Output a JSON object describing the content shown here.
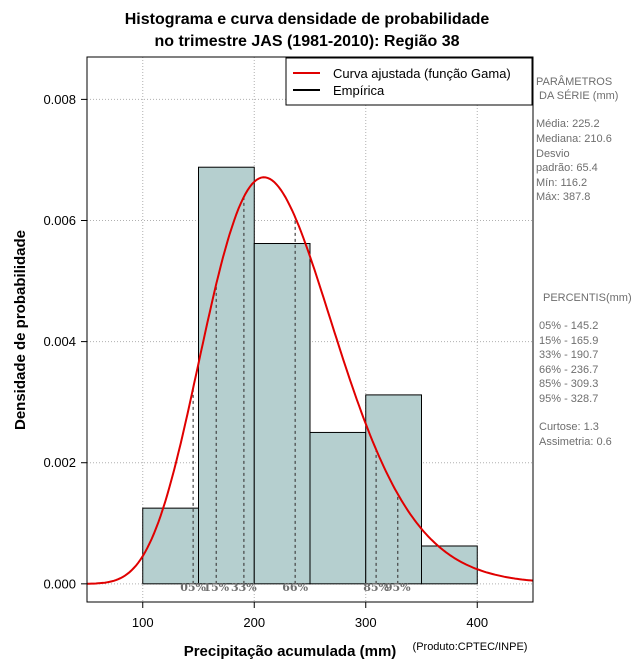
{
  "chart_data": {
    "type": "histogram",
    "title_lines": [
      "Histograma e curva densidade de probabilidade",
      "no trimestre JAS (1981-2010): Região 38"
    ],
    "xlabel": "Precipitação acumulada (mm)",
    "ylabel": "Densidade de probabilidade",
    "credit": "(Produto:CPTEC/INPE)",
    "xlim": [
      50,
      450
    ],
    "ylim": [
      -0.0003,
      0.0087
    ],
    "xticks": [
      100,
      200,
      300,
      400
    ],
    "yticks": [
      0.0,
      0.002,
      0.004,
      0.006,
      0.008
    ],
    "ytick_labels": [
      "0.000",
      "0.002",
      "0.004",
      "0.006",
      "0.008"
    ],
    "grid": true,
    "bars": [
      {
        "x0": 100,
        "x1": 150,
        "density": 0.00125
      },
      {
        "x0": 150,
        "x1": 200,
        "density": 0.00688
      },
      {
        "x0": 200,
        "x1": 250,
        "density": 0.00562
      },
      {
        "x0": 250,
        "x1": 300,
        "density": 0.0025
      },
      {
        "x0": 300,
        "x1": 350,
        "density": 0.00312
      },
      {
        "x0": 350,
        "x1": 400,
        "density": 0.000625
      }
    ],
    "bar_color": "#b5cfcf",
    "curve": {
      "type": "gamma",
      "shape": 13.5,
      "rate": 0.0599,
      "color": "#e00000",
      "label": "Curva ajustada (função Gama)"
    },
    "empirical_label": "Empírica",
    "percentile_lines": [
      {
        "label": "05%",
        "value": 145.2
      },
      {
        "label": "15%",
        "value": 165.9
      },
      {
        "label": "33%",
        "value": 190.7
      },
      {
        "label": "66%",
        "value": 236.7
      },
      {
        "label": "85%",
        "value": 309.3
      },
      {
        "label": "95%",
        "value": 328.7
      }
    ],
    "legend_position": "top-right"
  },
  "parametros": {
    "header1": "PARÂMETROS",
    "header2": "DA SÉRIE (mm)",
    "lines": [
      "Média:  225.2",
      "Mediana:  210.6",
      "Desvio",
      "padrão:  65.4",
      "Mín:  116.2",
      "Máx:  387.8"
    ]
  },
  "percentis": {
    "header": "PERCENTIS(mm)",
    "lines": [
      "05% -  145.2",
      "15% -  165.9",
      "33% -  190.7",
      "66% -  236.7",
      "85% -  309.3",
      "95% -  328.7",
      "",
      "Curtose:  1.3",
      "Assimetria:  0.6"
    ]
  }
}
